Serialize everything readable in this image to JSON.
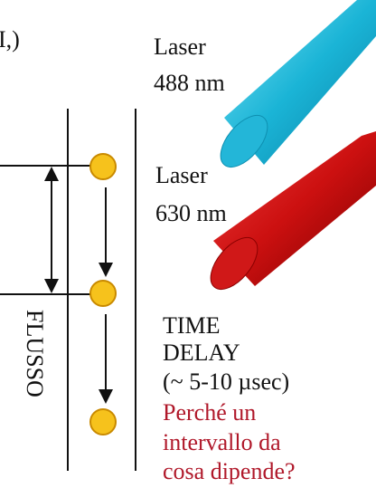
{
  "header": {
    "label": "I,)"
  },
  "lasers": [
    {
      "label": "Laser",
      "wavelength": "488 nm"
    },
    {
      "label": "Laser",
      "wavelength": "630 nm"
    }
  ],
  "flow_label": "FLUSSO",
  "delay": {
    "lines": [
      "TIME",
      "DELAY",
      "(~ 5-10 µsec)"
    ]
  },
  "question": {
    "lines": [
      "Perché un",
      "intervallo da",
      "cosa dipende?"
    ]
  }
}
